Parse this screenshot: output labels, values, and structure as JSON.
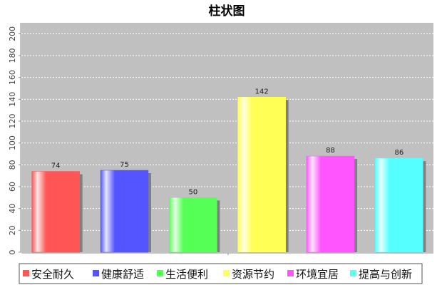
{
  "chart_data": {
    "type": "bar",
    "title": "柱状图",
    "xlabel": "",
    "ylabel": "",
    "ylim": [
      0,
      210
    ],
    "yticks": [
      0,
      20,
      40,
      60,
      80,
      100,
      120,
      140,
      160,
      180,
      200
    ],
    "grid": true,
    "legend_position": "bottom",
    "categories": [
      "安全耐久",
      "健康舒适",
      "生活便利",
      "资源节约",
      "环境宜居",
      "提高与创新"
    ],
    "values": [
      74,
      75,
      50,
      142,
      88,
      86
    ],
    "colors": [
      "#ff5555",
      "#5555ff",
      "#55ff55",
      "#ffff55",
      "#ff55ff",
      "#55ffff"
    ],
    "plot_background": "#c0c0c0"
  }
}
